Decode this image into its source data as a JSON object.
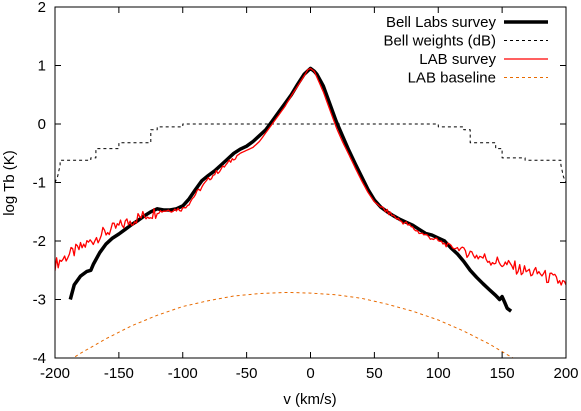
{
  "chart_data": {
    "type": "line",
    "title": "",
    "xlabel": "v (km/s)",
    "ylabel": "log Tb (K)",
    "xlim": [
      -200,
      200
    ],
    "ylim": [
      -4,
      2
    ],
    "x_ticks": [
      -200,
      -150,
      -100,
      -50,
      0,
      50,
      100,
      150,
      200
    ],
    "y_ticks": [
      -4,
      -3,
      -2,
      -1,
      0,
      1,
      2
    ],
    "x_tick_labels": [
      "-200",
      "-150",
      "-100",
      "-50",
      "0",
      "50",
      "100",
      "150",
      "200"
    ],
    "y_tick_labels": [
      "-4",
      "-3",
      "-2",
      "-1",
      "0",
      "1",
      "2"
    ],
    "grid": false,
    "legend_position": "top-right",
    "series": [
      {
        "name": "Bell Labs survey",
        "color": "#000000",
        "style": "solid-thick",
        "x": [
          -188,
          -185,
          -180,
          -175,
          -172,
          -170,
          -165,
          -160,
          -155,
          -150,
          -145,
          -140,
          -135,
          -130,
          -125,
          -120,
          -115,
          -110,
          -105,
          -100,
          -95,
          -90,
          -85,
          -80,
          -75,
          -70,
          -65,
          -60,
          -55,
          -50,
          -45,
          -40,
          -35,
          -30,
          -25,
          -20,
          -15,
          -10,
          -5,
          0,
          3,
          5,
          10,
          15,
          20,
          25,
          30,
          35,
          40,
          45,
          50,
          55,
          60,
          65,
          70,
          75,
          80,
          85,
          90,
          95,
          100,
          105,
          110,
          115,
          120,
          125,
          130,
          135,
          140,
          145,
          148,
          150,
          152,
          154,
          157
        ],
        "y": [
          -3.0,
          -2.75,
          -2.6,
          -2.52,
          -2.5,
          -2.4,
          -2.2,
          -2.05,
          -1.95,
          -1.88,
          -1.8,
          -1.72,
          -1.65,
          -1.57,
          -1.5,
          -1.45,
          -1.47,
          -1.47,
          -1.45,
          -1.4,
          -1.28,
          -1.12,
          -0.97,
          -0.88,
          -0.8,
          -0.7,
          -0.6,
          -0.5,
          -0.43,
          -0.38,
          -0.3,
          -0.2,
          -0.1,
          0.05,
          0.2,
          0.35,
          0.5,
          0.68,
          0.85,
          0.95,
          0.9,
          0.85,
          0.65,
          0.35,
          0.05,
          -0.2,
          -0.45,
          -0.68,
          -0.9,
          -1.12,
          -1.3,
          -1.42,
          -1.5,
          -1.57,
          -1.63,
          -1.68,
          -1.73,
          -1.8,
          -1.87,
          -1.9,
          -1.95,
          -2.0,
          -2.12,
          -2.22,
          -2.35,
          -2.5,
          -2.62,
          -2.73,
          -2.83,
          -2.93,
          -3.0,
          -2.95,
          -3.05,
          -3.15,
          -3.2
        ]
      },
      {
        "name": "Bell weights (dB)",
        "color": "#000000",
        "style": "dotted",
        "x": [
          -200,
          -198,
          -196,
          -196,
          -180,
          -180,
          -172,
          -172,
          -168,
          -168,
          -150,
          -150,
          -145,
          -145,
          -125,
          -125,
          -120,
          -120,
          -100,
          -100,
          100,
          100,
          120,
          120,
          125,
          125,
          145,
          145,
          150,
          150,
          168,
          168,
          172,
          172,
          180,
          180,
          196,
          196,
          198,
          200
        ],
        "y": [
          -1.0,
          -0.9,
          -0.7,
          -0.62,
          -0.62,
          -0.62,
          -0.62,
          -0.58,
          -0.58,
          -0.42,
          -0.42,
          -0.32,
          -0.32,
          -0.32,
          -0.32,
          -0.1,
          -0.1,
          -0.05,
          -0.05,
          0.0,
          0.0,
          -0.05,
          -0.05,
          -0.1,
          -0.1,
          -0.32,
          -0.32,
          -0.42,
          -0.42,
          -0.58,
          -0.58,
          -0.62,
          -0.62,
          -0.62,
          -0.62,
          -0.62,
          -0.62,
          -0.7,
          -0.9,
          -1.0
        ]
      },
      {
        "name": "LAB survey",
        "color": "#ff0000",
        "style": "solid-noisy",
        "x": [
          -200,
          -195,
          -190,
          -185,
          -180,
          -175,
          -170,
          -165,
          -160,
          -155,
          -150,
          -145,
          -140,
          -135,
          -130,
          -125,
          -120,
          -115,
          -110,
          -105,
          -100,
          -95,
          -90,
          -85,
          -80,
          -75,
          -70,
          -65,
          -60,
          -55,
          -50,
          -45,
          -40,
          -35,
          -30,
          -25,
          -20,
          -15,
          -10,
          -5,
          -2,
          0,
          3,
          5,
          10,
          15,
          20,
          25,
          30,
          35,
          40,
          45,
          50,
          55,
          60,
          65,
          70,
          75,
          80,
          85,
          90,
          95,
          100,
          105,
          110,
          115,
          120,
          125,
          130,
          135,
          140,
          145,
          150,
          155,
          160,
          165,
          170,
          175,
          180,
          185,
          190,
          195,
          200
        ],
        "y": [
          -2.4,
          -2.32,
          -2.25,
          -2.18,
          -2.12,
          -2.05,
          -1.98,
          -1.9,
          -1.85,
          -1.8,
          -1.75,
          -1.7,
          -1.65,
          -1.6,
          -1.57,
          -1.53,
          -1.5,
          -1.48,
          -1.47,
          -1.46,
          -1.45,
          -1.35,
          -1.2,
          -1.08,
          -0.95,
          -0.85,
          -0.77,
          -0.68,
          -0.58,
          -0.5,
          -0.45,
          -0.4,
          -0.3,
          -0.15,
          0.0,
          0.15,
          0.3,
          0.48,
          0.65,
          0.82,
          0.93,
          0.95,
          0.9,
          0.8,
          0.55,
          0.25,
          -0.05,
          -0.3,
          -0.52,
          -0.75,
          -0.97,
          -1.17,
          -1.33,
          -1.42,
          -1.5,
          -1.57,
          -1.65,
          -1.7,
          -1.78,
          -1.85,
          -1.9,
          -1.95,
          -2.0,
          -2.05,
          -2.1,
          -2.12,
          -2.15,
          -2.2,
          -2.25,
          -2.28,
          -2.32,
          -2.35,
          -2.38,
          -2.42,
          -2.45,
          -2.5,
          -2.52,
          -2.55,
          -2.55,
          -2.62,
          -2.65,
          -2.7,
          -2.75
        ]
      },
      {
        "name": "LAB baseline",
        "color": "#e86a00",
        "style": "dotted",
        "x": [
          -200,
          -180,
          -160,
          -140,
          -120,
          -100,
          -80,
          -60,
          -40,
          -20,
          -15,
          0,
          20,
          40,
          60,
          80,
          100,
          120,
          140,
          160,
          180,
          200
        ],
        "y": [
          -4.2,
          -3.92,
          -3.67,
          -3.45,
          -3.27,
          -3.12,
          -3.02,
          -2.94,
          -2.9,
          -2.88,
          -2.88,
          -2.89,
          -2.92,
          -2.98,
          -3.08,
          -3.2,
          -3.35,
          -3.54,
          -3.76,
          -4.02,
          -4.32,
          -4.65
        ]
      }
    ]
  }
}
